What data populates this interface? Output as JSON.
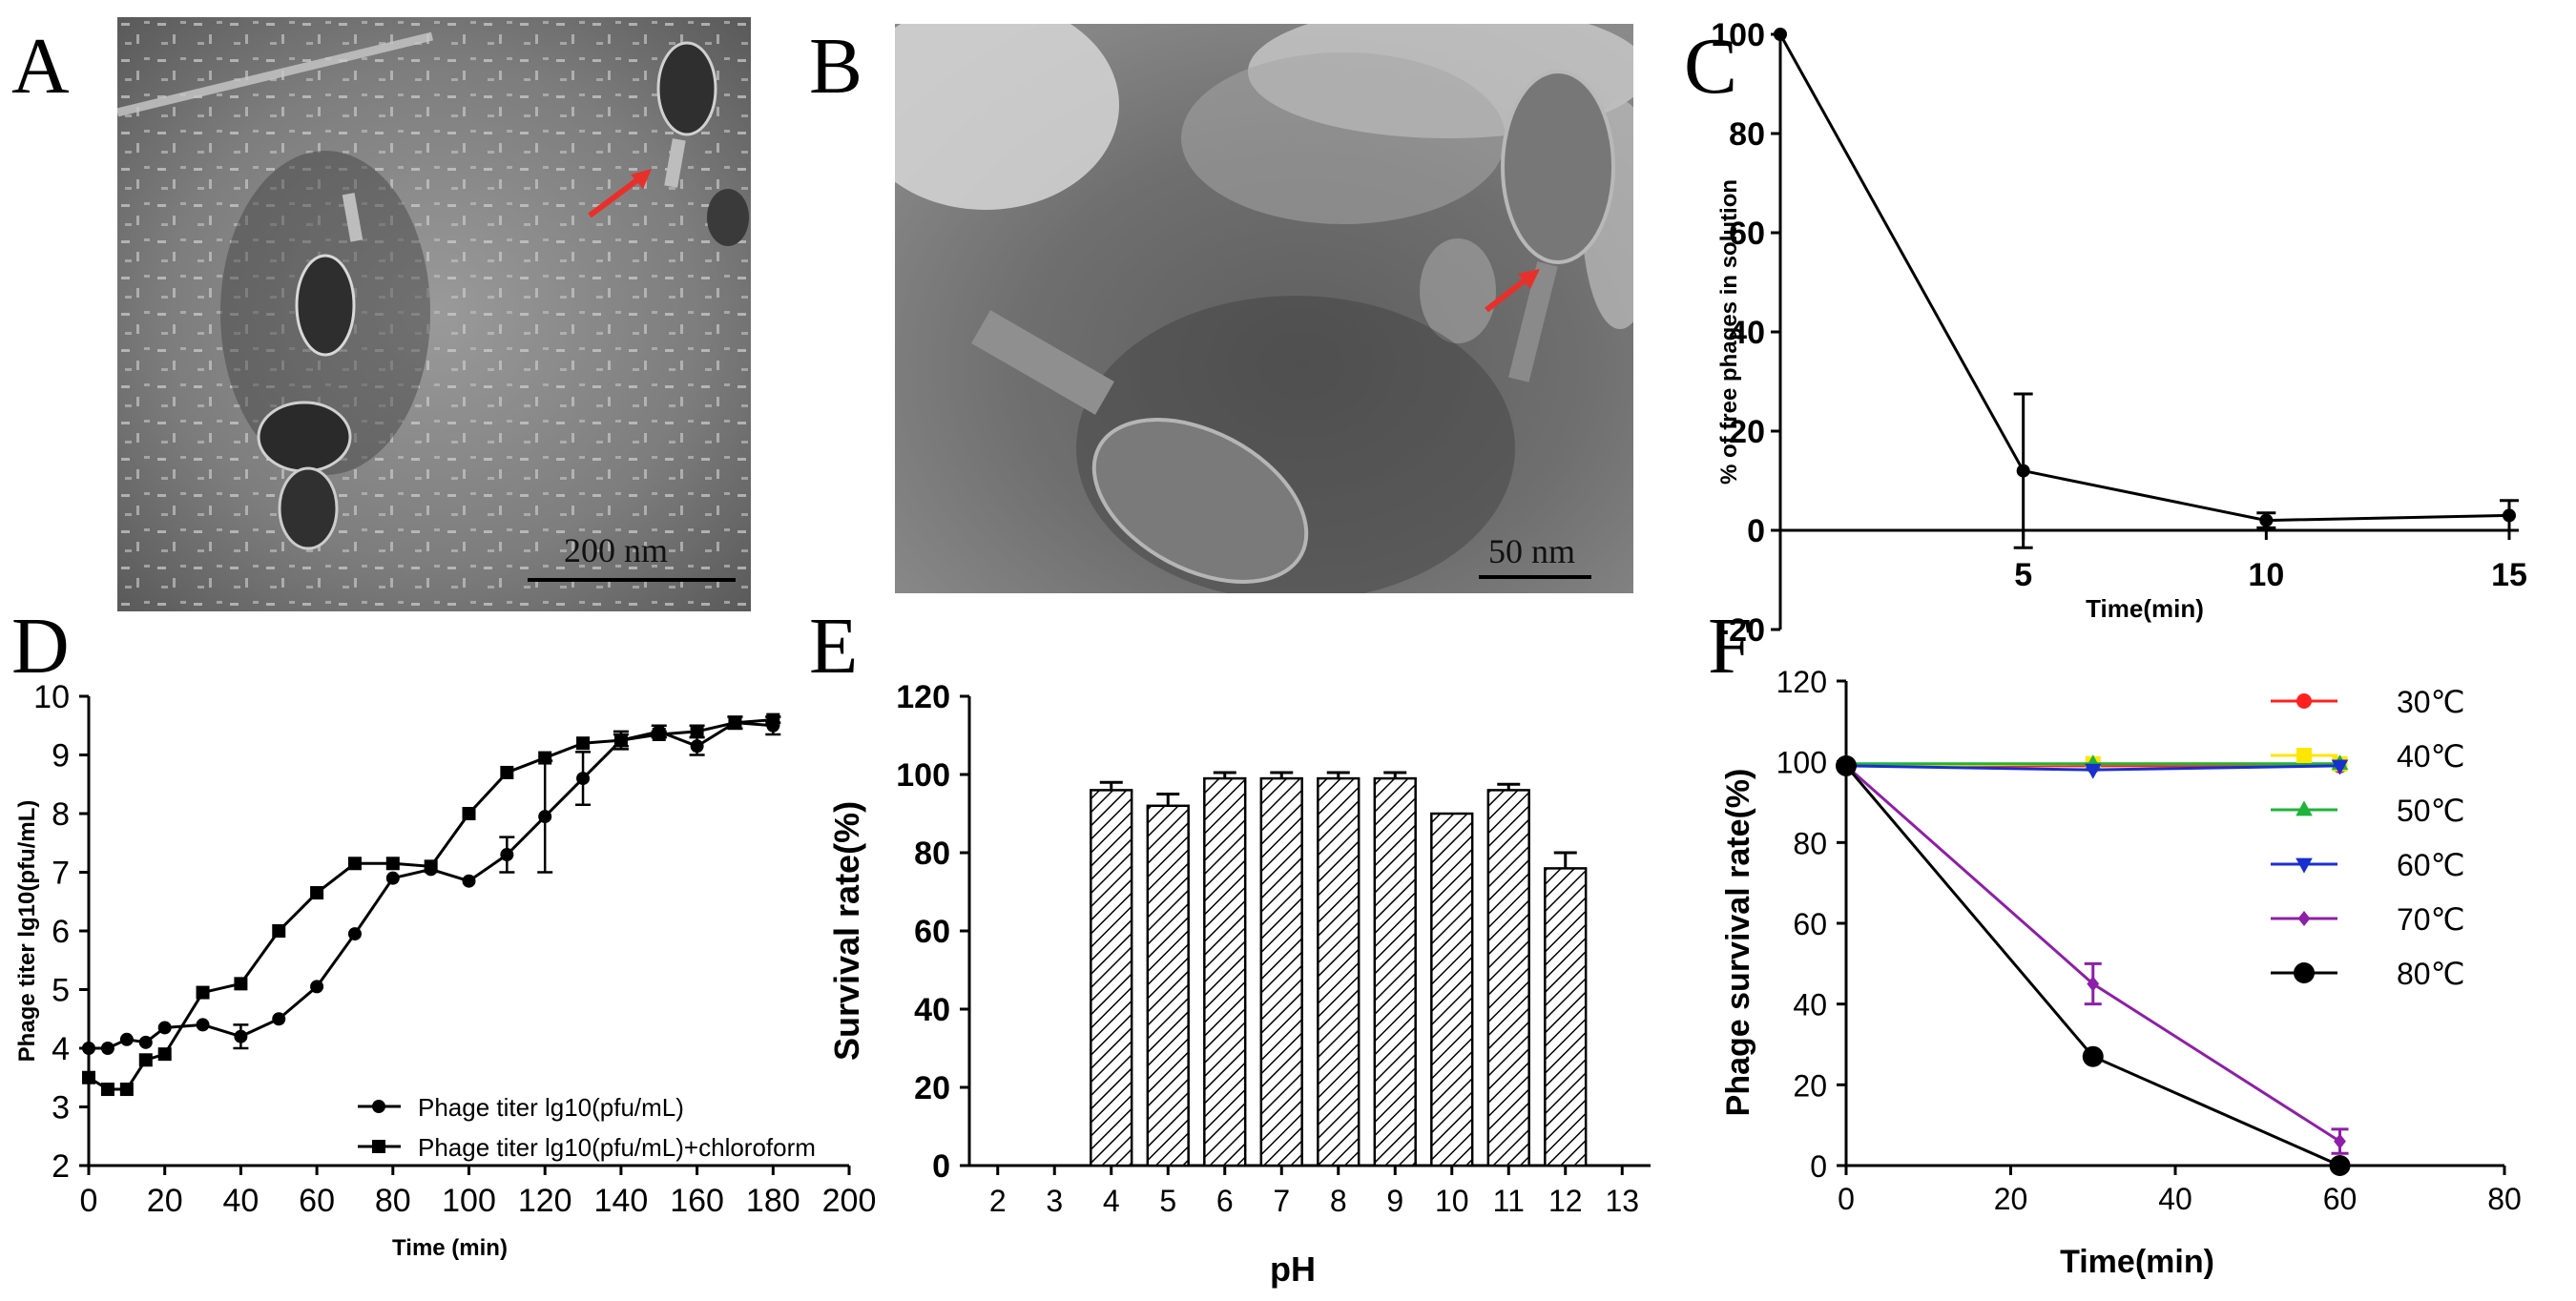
{
  "panels": {
    "A": {
      "letter": "A",
      "scale_bar": "200 nm",
      "arrow_color": "#e8302a"
    },
    "B": {
      "letter": "B",
      "scale_bar": "50 nm",
      "arrow_color": "#e8302a"
    },
    "C": {
      "letter": "C"
    },
    "D": {
      "letter": "D"
    },
    "E": {
      "letter": "E"
    },
    "F": {
      "letter": "F"
    }
  },
  "chart_data": [
    {
      "panel": "C",
      "type": "line",
      "xlabel": "Time(min)",
      "ylabel": "% of free phages in solution",
      "x_ticks": [
        "5",
        "10",
        "15"
      ],
      "y_ticks": [
        "-20",
        "0",
        "20",
        "40",
        "60",
        "80",
        "100"
      ],
      "xlim": [
        0,
        15
      ],
      "ylim": [
        -20,
        100
      ],
      "series": [
        {
          "x": [
            0,
            5,
            10,
            15
          ],
          "y": [
            100,
            12,
            2,
            3
          ],
          "err": [
            0,
            15.5,
            1.5,
            3
          ],
          "color": "#000000",
          "marker": "circle"
        }
      ]
    },
    {
      "panel": "D",
      "type": "line",
      "xlabel": "Time (min)",
      "ylabel": "Phage titer lg10(pfu/mL)",
      "x_ticks": [
        "0",
        "20",
        "40",
        "60",
        "80",
        "100",
        "120",
        "140",
        "160",
        "180",
        "200"
      ],
      "y_ticks": [
        "2",
        "3",
        "4",
        "5",
        "6",
        "7",
        "8",
        "9",
        "10"
      ],
      "xlim": [
        0,
        200
      ],
      "ylim": [
        2,
        10
      ],
      "legend": "bottom-center",
      "series": [
        {
          "name": "Phage titer lg10(pfu/mL)",
          "marker": "circle",
          "x": [
            0,
            5,
            10,
            15,
            20,
            30,
            40,
            50,
            60,
            70,
            80,
            90,
            100,
            110,
            120,
            130,
            140,
            150,
            160,
            170,
            180
          ],
          "y": [
            4.0,
            4.0,
            4.15,
            4.1,
            4.35,
            4.4,
            4.2,
            4.5,
            5.05,
            5.95,
            6.9,
            7.05,
            6.85,
            7.3,
            7.95,
            8.6,
            9.25,
            9.4,
            9.15,
            9.55,
            9.5
          ],
          "err": [
            0,
            0,
            0,
            0,
            0,
            0,
            0.2,
            0,
            0,
            0,
            0,
            0,
            0,
            0.3,
            0.95,
            0.45,
            0.1,
            0.1,
            0.15,
            0.1,
            0.15
          ]
        },
        {
          "name": "Phage titer lg10(pfu/mL)+chloroform",
          "marker": "square",
          "x": [
            0,
            5,
            10,
            15,
            20,
            30,
            40,
            50,
            60,
            70,
            80,
            90,
            100,
            110,
            120,
            130,
            140,
            150,
            160,
            170,
            180
          ],
          "y": [
            3.5,
            3.3,
            3.3,
            3.8,
            3.9,
            4.95,
            5.1,
            6.0,
            6.65,
            7.15,
            7.15,
            7.1,
            8.0,
            8.7,
            8.95,
            9.2,
            9.25,
            9.35,
            9.4,
            9.55,
            9.6
          ],
          "err": [
            0,
            0,
            0,
            0,
            0,
            0,
            0,
            0,
            0,
            0,
            0,
            0,
            0,
            0,
            0,
            0,
            0.15,
            0.05,
            0.1,
            0.1,
            0.05
          ]
        }
      ]
    },
    {
      "panel": "E",
      "type": "bar",
      "xlabel": "pH",
      "ylabel": "Survival rate(%)",
      "categories": [
        "2",
        "3",
        "4",
        "5",
        "6",
        "7",
        "8",
        "9",
        "10",
        "11",
        "12",
        "13"
      ],
      "values": [
        0,
        0,
        96,
        92,
        99,
        99,
        99,
        99,
        90,
        96,
        76,
        0
      ],
      "err": [
        0,
        0,
        2,
        3,
        1.5,
        1.5,
        1.5,
        1.5,
        0,
        1.5,
        4,
        0
      ],
      "y_ticks": [
        "0",
        "20",
        "40",
        "60",
        "80",
        "100",
        "120"
      ],
      "ylim": [
        0,
        120
      ],
      "fill": "hatched"
    },
    {
      "panel": "F",
      "type": "line",
      "xlabel": "Time(min)",
      "ylabel": "Phage survival rate(%)",
      "x_ticks": [
        "0",
        "20",
        "40",
        "60",
        "80"
      ],
      "y_ticks": [
        "0",
        "20",
        "40",
        "60",
        "80",
        "100",
        "120"
      ],
      "xlim": [
        0,
        80
      ],
      "ylim": [
        0,
        120
      ],
      "legend": "right",
      "series": [
        {
          "name": "30℃",
          "color": "#ff2020",
          "marker": "circle",
          "x": [
            0,
            30,
            60
          ],
          "y": [
            99,
            99,
            99
          ],
          "err": [
            0,
            0,
            0
          ]
        },
        {
          "name": "40℃",
          "color": "#ffe600",
          "marker": "square",
          "x": [
            0,
            30,
            60
          ],
          "y": [
            99,
            99.5,
            99.5
          ],
          "err": [
            0,
            0,
            0
          ]
        },
        {
          "name": "50℃",
          "color": "#1fb33a",
          "marker": "triangle-up",
          "x": [
            0,
            30,
            60
          ],
          "y": [
            99.5,
            99.5,
            99.5
          ],
          "err": [
            0,
            0,
            0
          ]
        },
        {
          "name": "60℃",
          "color": "#1a2fcf",
          "marker": "triangle-down",
          "x": [
            0,
            30,
            60
          ],
          "y": [
            99,
            98,
            99
          ],
          "err": [
            0,
            0,
            0
          ]
        },
        {
          "name": "70℃",
          "color": "#8e1fa8",
          "marker": "diamond",
          "x": [
            0,
            30,
            60
          ],
          "y": [
            99,
            45,
            6
          ],
          "err": [
            0,
            5,
            3
          ]
        },
        {
          "name": "80℃",
          "color": "#000000",
          "marker": "big-circle",
          "x": [
            0,
            30,
            60
          ],
          "y": [
            99,
            27,
            0
          ],
          "err": [
            0,
            0,
            0
          ]
        }
      ]
    }
  ]
}
